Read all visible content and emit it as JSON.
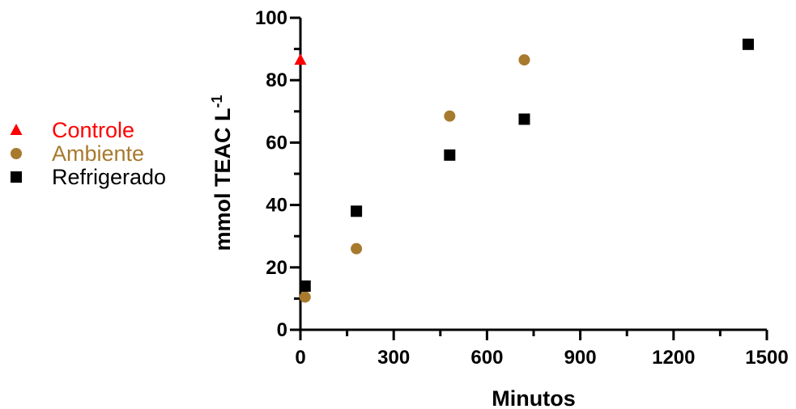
{
  "chart_data": {
    "type": "scatter",
    "xlabel": "Minutos",
    "ylabel": "mmol TEAC L",
    "ylabel_superscript": "-1",
    "xlim": [
      0,
      1500
    ],
    "ylim": [
      0,
      100
    ],
    "x_ticks": [
      "0",
      "300",
      "600",
      "900",
      "1200",
      "1500"
    ],
    "y_ticks": [
      "0",
      "20",
      "40",
      "60",
      "80",
      "100"
    ],
    "grid": false,
    "legend_position": "left",
    "series": [
      {
        "name": "Controle",
        "marker": "triangle",
        "color": "#ff0000",
        "x": [
          0
        ],
        "y": [
          86.5
        ]
      },
      {
        "name": "Ambiente",
        "marker": "circle",
        "color": "#a87a2e",
        "x": [
          15,
          180,
          480,
          720,
          1440
        ],
        "y": [
          10.5,
          26,
          68.5,
          86.5,
          91.5
        ]
      },
      {
        "name": "Refrigerado",
        "marker": "square",
        "color": "#000000",
        "x": [
          15,
          180,
          480,
          720,
          1440
        ],
        "y": [
          14,
          38,
          56,
          67.5,
          91.5
        ]
      }
    ]
  }
}
